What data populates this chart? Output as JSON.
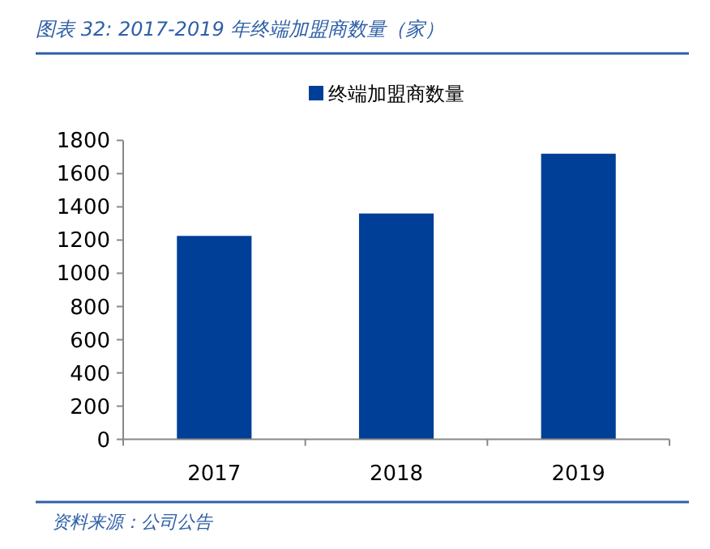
{
  "chart_data": {
    "type": "bar",
    "title": "图表 32: 2017-2019 年终端加盟商数量（家）",
    "categories": [
      "2017",
      "2018",
      "2019"
    ],
    "series": [
      {
        "name": "终端加盟商数量",
        "color": "#003f97",
        "values": [
          1225,
          1360,
          1720
        ]
      }
    ],
    "ylim": [
      0,
      1800
    ],
    "yticks": [
      0,
      200,
      400,
      600,
      800,
      1000,
      1200,
      1400,
      1600,
      1800
    ],
    "legend": "top",
    "grid": false,
    "annotations": [
      "资料来源：公司公告"
    ]
  }
}
